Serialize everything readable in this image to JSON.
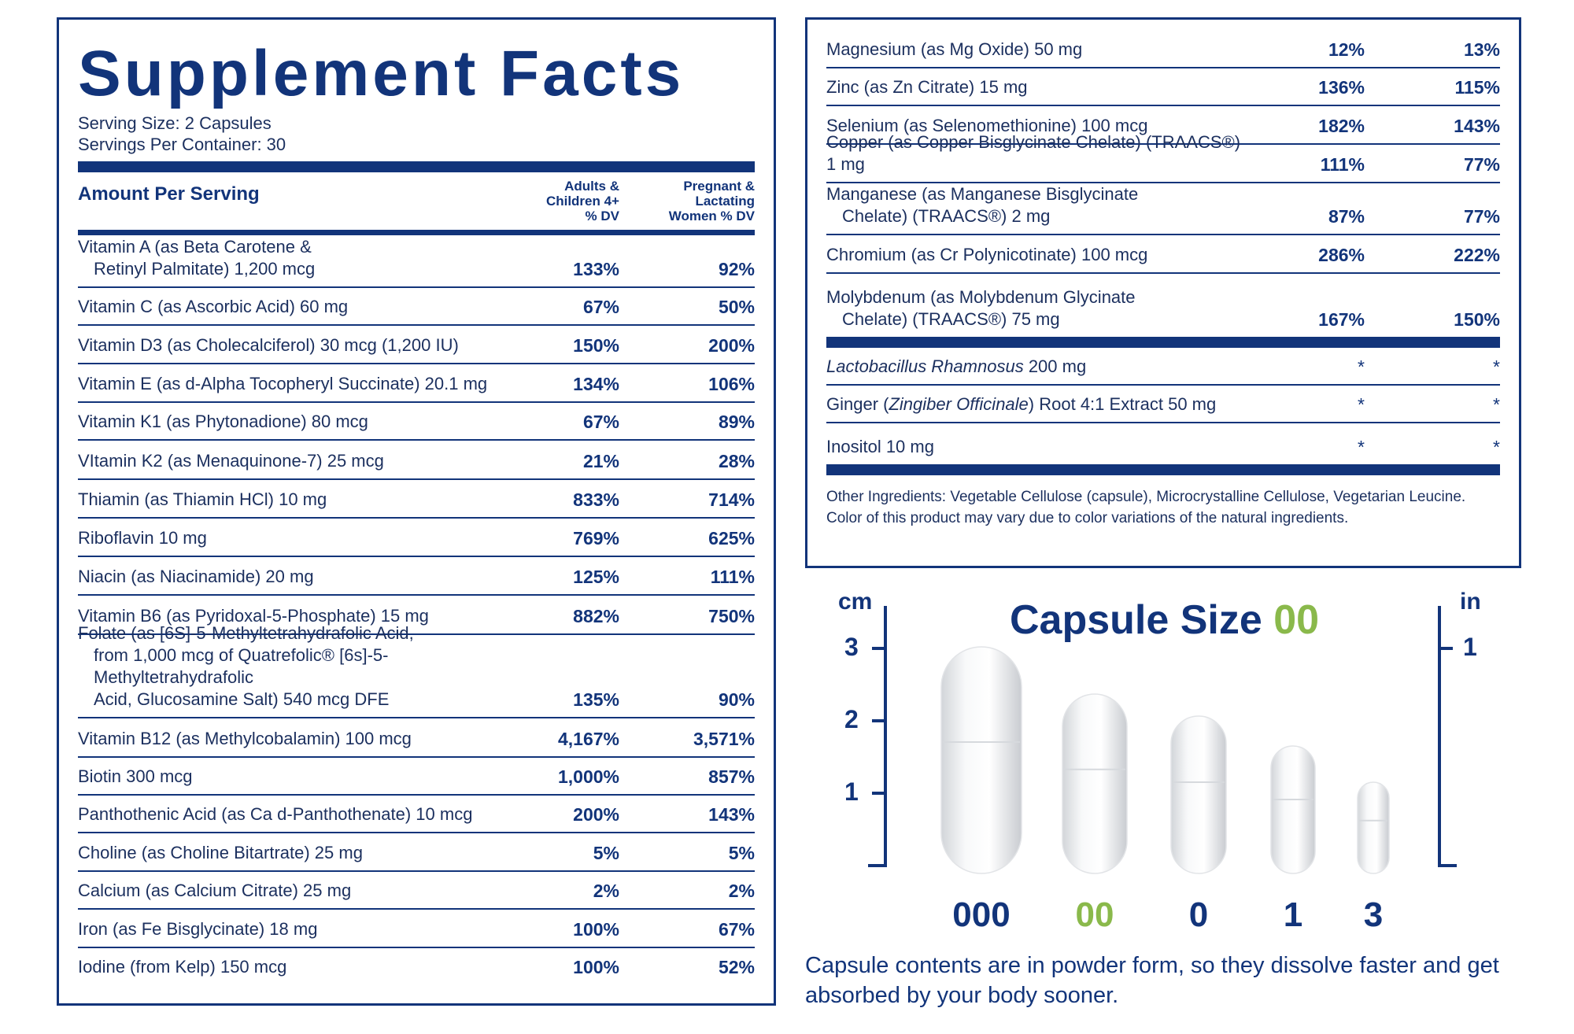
{
  "facts": {
    "title": "Supplement Facts",
    "serving_size": "Serving Size:  2 Capsules",
    "servings_per_container": "Servings Per Container: 30",
    "header": {
      "amount_label": "Amount Per Serving",
      "col1": [
        "Adults &",
        "Children 4+",
        "% DV"
      ],
      "col2": [
        "Pregnant &",
        "Lactating",
        "Women % DV"
      ]
    },
    "left_rows": [
      {
        "name": [
          "Vitamin A (as Beta Carotene &",
          "Retinyl Palmitate) 1,200 mcg"
        ],
        "v1": "133%",
        "v2": "92%"
      },
      {
        "name": [
          "Vitamin C (as Ascorbic Acid) 60 mg"
        ],
        "v1": "67%",
        "v2": "50%"
      },
      {
        "name": [
          "Vitamin D3 (as Cholecalciferol) 30 mcg (1,200 IU)"
        ],
        "v1": "150%",
        "v2": "200%"
      },
      {
        "name": [
          "Vitamin E (as d-Alpha Tocopheryl Succinate) 20.1 mg"
        ],
        "v1": "134%",
        "v2": "106%"
      },
      {
        "name": [
          "Vitamin K1 (as Phytonadione) 80 mcg"
        ],
        "v1": "67%",
        "v2": "89%"
      },
      {
        "name": [
          "VItamin K2 (as Menaquinone-7) 25 mcg"
        ],
        "v1": "21%",
        "v2": "28%"
      },
      {
        "name": [
          "Thiamin (as Thiamin HCl) 10 mg"
        ],
        "v1": "833%",
        "v2": "714%"
      },
      {
        "name": [
          "Riboflavin 10 mg"
        ],
        "v1": "769%",
        "v2": "625%"
      },
      {
        "name": [
          "Niacin (as Niacinamide) 20 mg"
        ],
        "v1": "125%",
        "v2": "111%"
      },
      {
        "name": [
          "Vitamin B6 (as Pyridoxal-5-Phosphate) 15 mg"
        ],
        "v1": "882%",
        "v2": "750%"
      },
      {
        "name": [
          "Folate (as [6S]-5-Methyltetrahydrafolic Acid,",
          "from 1,000 mcg of Quatrefolic® [6s]-5-Methyltetrahydrafolic",
          "Acid, Glucosamine Salt) 540 mcg DFE"
        ],
        "v1": "135%",
        "v2": "90%"
      },
      {
        "name": [
          "Vitamin B12 (as Methylcobalamin) 100 mcg"
        ],
        "v1": "4,167%",
        "v2": "3,571%"
      },
      {
        "name": [
          "Biotin 300 mcg"
        ],
        "v1": "1,000%",
        "v2": "857%"
      },
      {
        "name": [
          "Panthothenic Acid (as Ca d-Panthothenate) 10 mcg"
        ],
        "v1": "200%",
        "v2": "143%"
      },
      {
        "name": [
          "Choline (as Choline Bitartrate) 25 mg"
        ],
        "v1": "5%",
        "v2": "5%"
      },
      {
        "name": [
          "Calcium (as Calcium Citrate) 25 mg"
        ],
        "v1": "2%",
        "v2": "2%"
      },
      {
        "name": [
          "Iron (as Fe Bisglycinate) 18 mg"
        ],
        "v1": "100%",
        "v2": "67%"
      },
      {
        "name": [
          "Iodine (from Kelp) 150 mcg"
        ],
        "v1": "100%",
        "v2": "52%"
      }
    ],
    "right_rows": [
      {
        "name": [
          "Magnesium (as Mg Oxide) 50 mg"
        ],
        "v1": "12%",
        "v2": "13%"
      },
      {
        "name": [
          "Zinc (as Zn Citrate) 15 mg"
        ],
        "v1": "136%",
        "v2": "115%"
      },
      {
        "name": [
          "Selenium (as Selenomethionine) 100 mcg"
        ],
        "v1": "182%",
        "v2": "143%"
      },
      {
        "name": [
          "Copper (as Copper Bisglycinate Chelate) (TRAACS®) 1 mg"
        ],
        "v1": "111%",
        "v2": "77%"
      },
      {
        "name": [
          "Manganese (as Manganese Bisglycinate",
          "Chelate) (TRAACS®) 2 mg"
        ],
        "v1": "87%",
        "v2": "77%"
      },
      {
        "name": [
          "Chromium (as Cr Polynicotinate) 100 mcg"
        ],
        "v1": "286%",
        "v2": "222%"
      },
      {
        "name": [
          "Molybdenum (as Molybdenum Glycinate",
          "Chelate) (TRAACS®) 75 mg"
        ],
        "v1": "167%",
        "v2": "150%"
      }
    ],
    "botanicals": [
      {
        "italic": "Lactobacillus Rhamnosus",
        "rest": " 200 mg",
        "v1": "*",
        "v2": "*"
      },
      {
        "pre": "Ginger (",
        "italic": "Zingiber Officinale",
        "rest": ") Root 4:1 Extract 50 mg",
        "v1": "*",
        "v2": "*"
      },
      {
        "pre": "Inositol 10 mg",
        "v1": "*",
        "v2": "*"
      }
    ],
    "other_ingredients": "Other Ingredients: Vegetable Cellulose (capsule), Microcrystalline Cellulose, Vegetarian Leucine.",
    "color_note": "Color of this product may vary due to color variations of the natural ingredients."
  },
  "capsule": {
    "title": "Capsule Size ",
    "title_accent": "00",
    "cm_label": "cm",
    "in_label": "in",
    "cm_ticks": [
      "3",
      "2",
      "1"
    ],
    "in_ticks": [
      "1"
    ],
    "sizes": [
      "000",
      "00",
      "0",
      "1",
      "3"
    ],
    "highlight_size": "00",
    "note": "Capsule contents are in powder form, so they dissolve faster and get absorbed by your body sooner.",
    "colors": {
      "navy": "#12347a",
      "accent": "#8ab94b"
    }
  }
}
